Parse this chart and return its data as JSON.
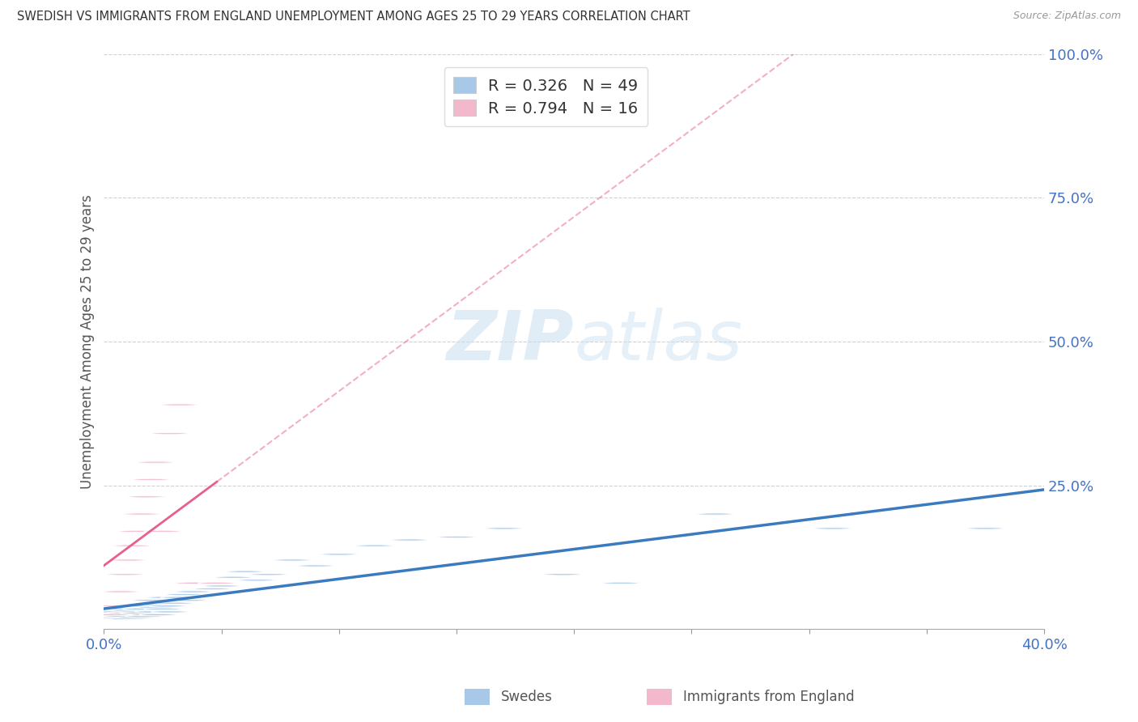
{
  "title": "SWEDISH VS IMMIGRANTS FROM ENGLAND UNEMPLOYMENT AMONG AGES 25 TO 29 YEARS CORRELATION CHART",
  "source": "Source: ZipAtlas.com",
  "ylabel": "Unemployment Among Ages 25 to 29 years",
  "xlim": [
    0.0,
    0.4
  ],
  "ylim": [
    0.0,
    1.0
  ],
  "xticks": [
    0.0,
    0.05,
    0.1,
    0.15,
    0.2,
    0.25,
    0.3,
    0.35,
    0.4
  ],
  "yticks": [
    0.0,
    0.25,
    0.5,
    0.75,
    1.0
  ],
  "R_blue": 0.326,
  "N_blue": 49,
  "R_pink": 0.794,
  "N_pink": 16,
  "blue_marker_color": "#a8c8e8",
  "pink_marker_color": "#f4b8cc",
  "blue_line_color": "#3a7bbf",
  "pink_line_color": "#e8608a",
  "tick_label_color": "#4472c4",
  "legend_label_blue": "Swedes",
  "legend_label_pink": "Immigrants from England",
  "watermark_text": "ZIPatlas",
  "swedes_x": [
    0.004,
    0.006,
    0.007,
    0.008,
    0.009,
    0.01,
    0.01,
    0.011,
    0.012,
    0.013,
    0.014,
    0.015,
    0.016,
    0.017,
    0.018,
    0.019,
    0.02,
    0.021,
    0.022,
    0.023,
    0.024,
    0.025,
    0.026,
    0.027,
    0.028,
    0.03,
    0.032,
    0.034,
    0.036,
    0.038,
    0.042,
    0.046,
    0.05,
    0.055,
    0.06,
    0.065,
    0.07,
    0.08,
    0.09,
    0.1,
    0.115,
    0.13,
    0.15,
    0.17,
    0.195,
    0.22,
    0.26,
    0.31,
    0.375
  ],
  "swedes_y": [
    0.03,
    0.02,
    0.025,
    0.022,
    0.028,
    0.035,
    0.018,
    0.032,
    0.025,
    0.02,
    0.03,
    0.028,
    0.035,
    0.022,
    0.04,
    0.025,
    0.05,
    0.03,
    0.038,
    0.025,
    0.042,
    0.035,
    0.055,
    0.04,
    0.03,
    0.045,
    0.055,
    0.06,
    0.05,
    0.065,
    0.08,
    0.07,
    0.075,
    0.09,
    0.1,
    0.085,
    0.095,
    0.12,
    0.11,
    0.13,
    0.145,
    0.155,
    0.16,
    0.175,
    0.095,
    0.08,
    0.2,
    0.175,
    0.175
  ],
  "england_x": [
    0.003,
    0.005,
    0.007,
    0.009,
    0.01,
    0.012,
    0.014,
    0.016,
    0.018,
    0.02,
    0.022,
    0.025,
    0.028,
    0.032,
    0.038,
    0.048
  ],
  "england_y": [
    0.025,
    0.04,
    0.065,
    0.095,
    0.12,
    0.145,
    0.17,
    0.2,
    0.23,
    0.26,
    0.29,
    0.17,
    0.34,
    0.39,
    0.08,
    0.08
  ]
}
